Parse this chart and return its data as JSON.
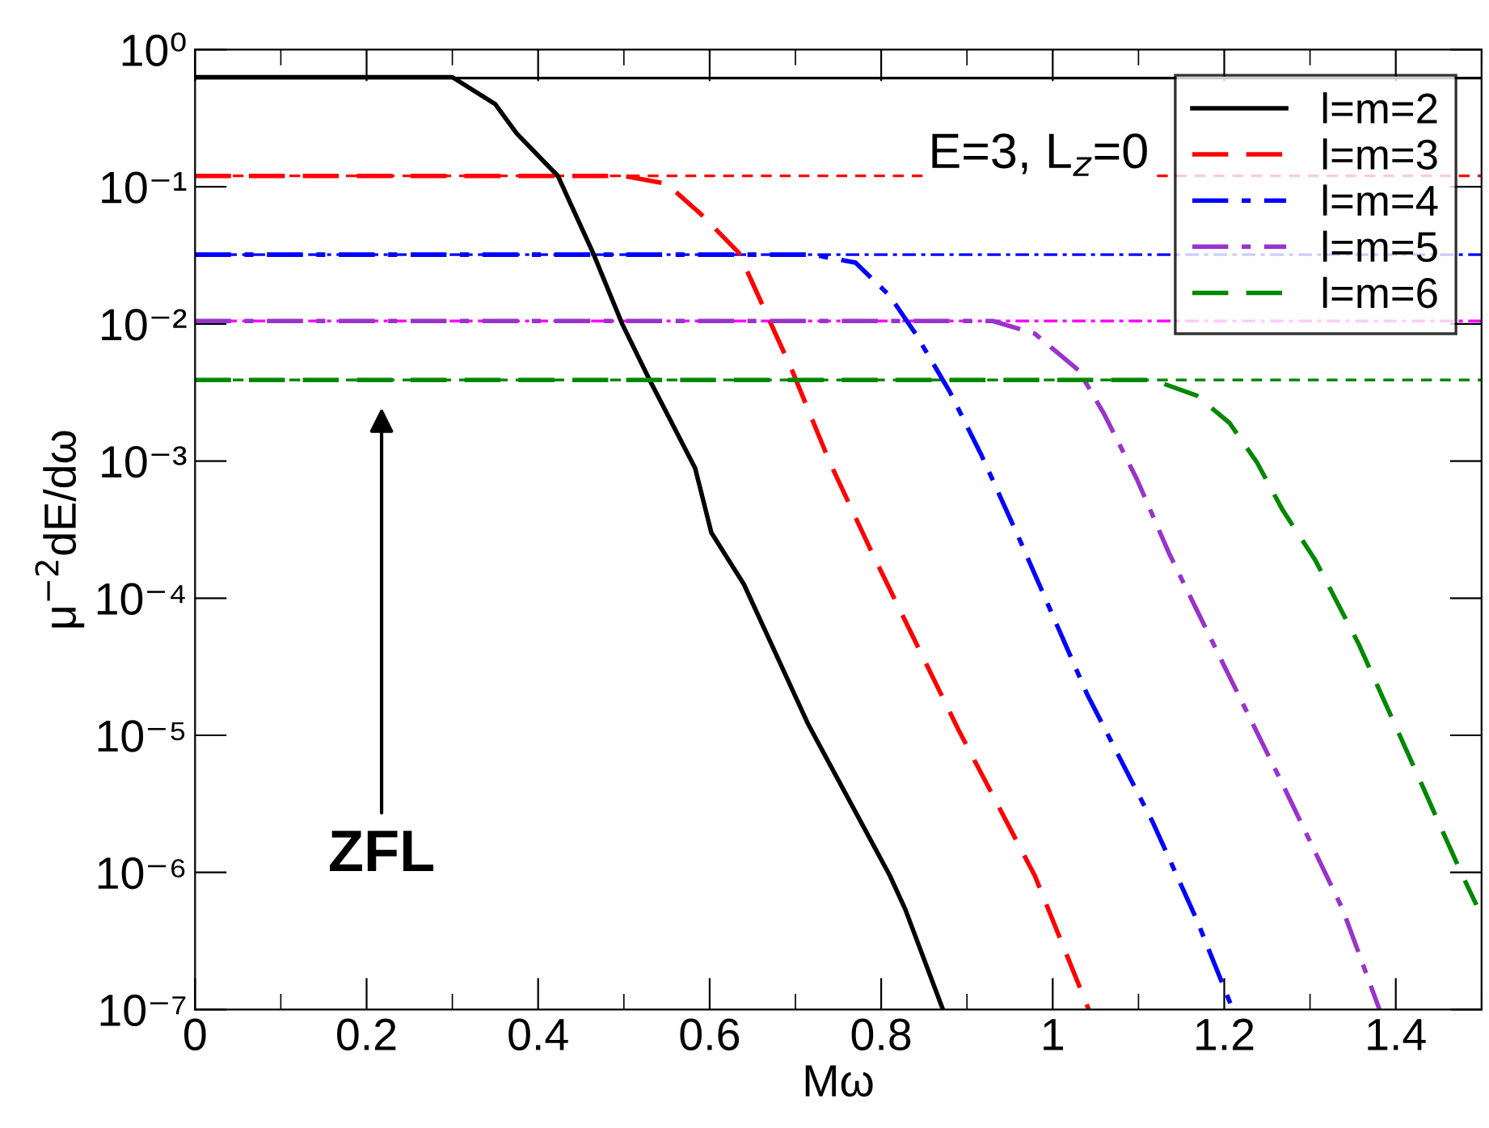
{
  "chart_data": {
    "type": "line",
    "xlabel": "Mω",
    "ylabel": "μ$^{−2}$dE/dω",
    "log": "y",
    "xlim": [
      0,
      1.5
    ],
    "xticks": [
      0,
      0.2,
      0.4,
      0.6,
      0.8,
      1,
      1.2,
      1.4
    ],
    "ylim": [
      1e-07,
      1
    ],
    "yticks": [
      {
        "value": 1e-07,
        "label": "10⁻⁷"
      },
      {
        "value": 1e-06,
        "label": "10⁻⁶"
      },
      {
        "value": 1e-05,
        "label": "10⁻⁵"
      },
      {
        "value": 0.0001,
        "label": "10⁻⁴"
      },
      {
        "value": 0.001,
        "label": "10⁻³"
      },
      {
        "value": 0.01,
        "label": "10⁻²"
      },
      {
        "value": 0.1,
        "label": "10⁻¹"
      },
      {
        "value": 1,
        "label": "10⁰"
      }
    ],
    "grid": false,
    "legend": "top right",
    "marker": "none",
    "series": [
      {
        "name": "l=m=2",
        "color": "#000000",
        "line_style": "solid",
        "x": [
          0,
          0.3,
          0.35,
          0.375,
          0.423,
          0.464,
          0.498,
          0.53,
          0.583,
          0.602,
          0.64,
          0.715,
          0.81,
          0.828,
          0.872
        ],
        "values": [
          0.63,
          0.63,
          0.4,
          0.245,
          0.12,
          0.033,
          0.01,
          0.0039,
          0.00089,
          0.0003,
          0.000126,
          1.2e-05,
          9.5e-07,
          5.4e-07,
          1e-07
        ]
      },
      {
        "name": "l=m=3",
        "color": "#ff0000",
        "line_style": "dashed",
        "x": [
          0,
          0.5,
          0.55,
          0.59,
          0.634,
          0.696,
          0.74,
          0.79,
          0.89,
          0.979,
          1.042
        ],
        "values": [
          0.12,
          0.12,
          0.105,
          0.063,
          0.033,
          0.0046,
          0.00098,
          0.00021,
          1.1e-05,
          9.5e-07,
          1e-07
        ]
      },
      {
        "name": "l=m=4",
        "color": "#0000ff",
        "line_style": "dashdot",
        "x": [
          0,
          0.72,
          0.77,
          0.81,
          0.84,
          0.88,
          0.917,
          0.96,
          1.04,
          1.117,
          1.168,
          1.21
        ],
        "values": [
          0.032,
          0.032,
          0.028,
          0.016,
          0.0085,
          0.0032,
          0.0011,
          0.00028,
          2e-05,
          2.3e-06,
          4.5e-07,
          1e-07
        ]
      },
      {
        "name": "l=m=5",
        "color": "#9933cc",
        "line_style": "dashdot",
        "x": [
          0,
          0.93,
          0.979,
          1.03,
          1.06,
          1.098,
          1.136,
          1.2,
          1.268,
          1.338,
          1.381
        ],
        "values": [
          0.0105,
          0.0105,
          0.0085,
          0.0046,
          0.0022,
          0.00074,
          0.00021,
          3.2e-05,
          4.4e-06,
          5.4e-07,
          1e-07
        ]
      },
      {
        "name": "l=m=6",
        "color": "#008800",
        "line_style": "dashed",
        "x": [
          0,
          1.117,
          1.168,
          1.206,
          1.238,
          1.268,
          1.306,
          1.357,
          1.419,
          1.476,
          1.494
        ],
        "values": [
          0.0039,
          0.0039,
          0.003,
          0.0019,
          0.00098,
          0.00044,
          0.00019,
          4.6e-05,
          6.3e-06,
          1e-06,
          5.8e-07
        ]
      }
    ],
    "ref_lines": [
      {
        "axis": "y",
        "value": 0.62,
        "color": "#000000",
        "line_style": "solid"
      },
      {
        "axis": "y",
        "value": 0.12,
        "color": "#ff0000",
        "line_style": "dashed"
      },
      {
        "axis": "y",
        "value": 0.032,
        "color": "#0000ff",
        "line_style": "dashdot"
      },
      {
        "axis": "y",
        "value": 0.0105,
        "color": "#ff00ff",
        "line_style": "dashdot"
      },
      {
        "axis": "y",
        "value": 0.0039,
        "color": "#008800",
        "line_style": "dashed"
      }
    ],
    "annotations": [
      "E=3, L$_{z}$=0",
      "ZFL"
    ]
  }
}
